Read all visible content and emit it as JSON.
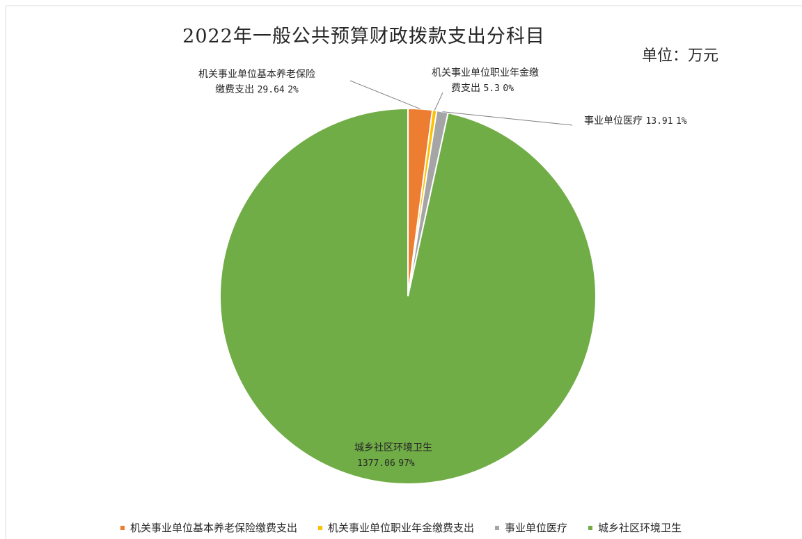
{
  "chart_data": {
    "type": "pie",
    "title": "2022年一般公共预算财政拨款支出分科目",
    "unit": "单位：万元",
    "start_angle_deg": 0,
    "direction": "clockwise",
    "legend_position": "bottom",
    "slices": [
      {
        "name": "机关事业单位基本养老保险缴费支出",
        "label_lines": [
          "机关事业单位基本养老保险",
          "缴费支出"
        ],
        "value": 29.64,
        "value_text": "29.64",
        "percent_text": "2%",
        "color": "#ED7D31"
      },
      {
        "name": "机关事业单位职业年金缴费支出",
        "label_lines": [
          "机关事业单位职业年金缴",
          "费支出"
        ],
        "value": 5.3,
        "value_text": "5.3",
        "percent_text": "0%",
        "color": "#FFC000"
      },
      {
        "name": "事业单位医疗",
        "label_lines": [
          "事业单位医疗"
        ],
        "value": 13.91,
        "value_text": "13.91",
        "percent_text": "1%",
        "color": "#A5A5A5"
      },
      {
        "name": "城乡社区环境卫生",
        "label_lines": [
          "城乡社区环境卫生"
        ],
        "value": 1377.06,
        "value_text": "1377.06",
        "percent_text": "97%",
        "color": "#70AD47"
      }
    ]
  }
}
